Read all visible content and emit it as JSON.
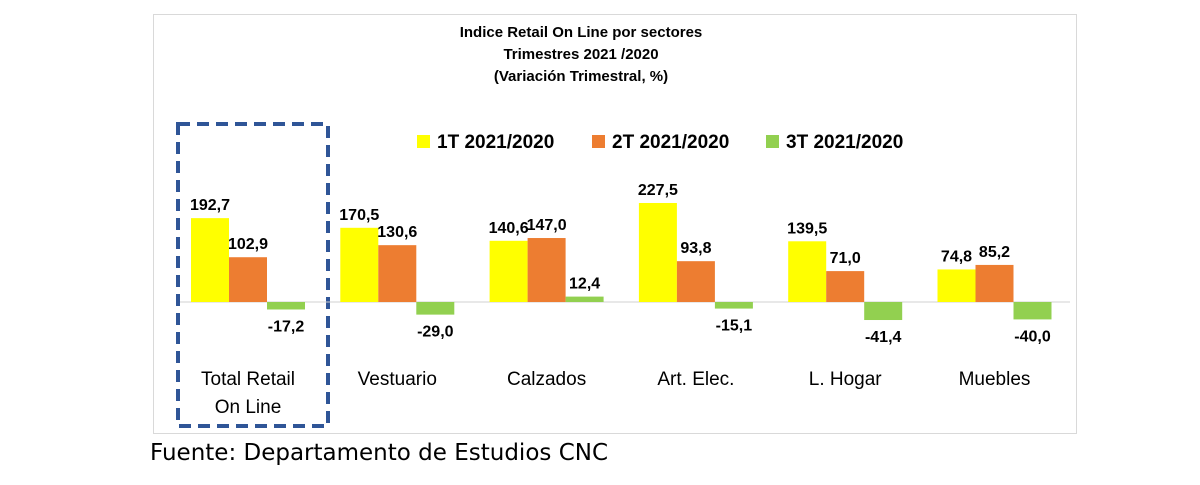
{
  "chart_data": {
    "type": "bar",
    "title_lines": [
      "Indice Retail On Line por sectores",
      "Trimestres 2021 /2020",
      "(Variación Trimestral, %)"
    ],
    "categories": [
      [
        "Total Retail",
        "On Line"
      ],
      [
        "Vestuario"
      ],
      [
        "Calzados"
      ],
      [
        "Art. Elec."
      ],
      [
        "L. Hogar"
      ],
      [
        "Muebles"
      ]
    ],
    "series": [
      {
        "name": "1T 2021/2020",
        "color": "#FFFF00",
        "values": [
          192.7,
          170.5,
          140.6,
          227.5,
          139.5,
          74.8
        ],
        "labels": [
          "192,7",
          "170,5",
          "140,6",
          "227,5",
          "139,5",
          "74,8"
        ]
      },
      {
        "name": "2T 2021/2020",
        "color": "#ED7D31",
        "values": [
          102.9,
          130.6,
          147.0,
          93.8,
          71.0,
          85.2
        ],
        "labels": [
          "102,9",
          "130,6",
          "147,0",
          "93,8",
          "71,0",
          "85,2"
        ]
      },
      {
        "name": "3T 2021/2020",
        "color": "#92D050",
        "values": [
          -17.2,
          -29.0,
          12.4,
          -15.1,
          -41.4,
          -40.0
        ],
        "labels": [
          "-17,2",
          "-29,0",
          "12,4",
          "-15,1",
          "-41,4",
          "-40,0"
        ]
      }
    ],
    "highlight_category": 0,
    "highlight_color": "#2F5597",
    "legend_position": "top-right",
    "grid": false
  },
  "source_note": "Fuente: Departamento de Estudios CNC"
}
